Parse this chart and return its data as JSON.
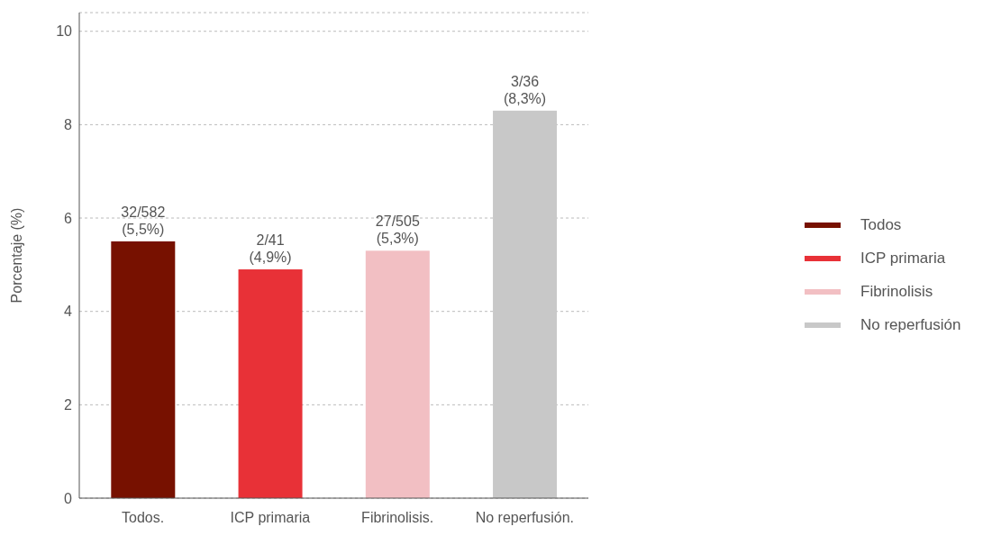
{
  "chart_data": {
    "type": "bar",
    "ylabel": "Porcentaje (%)",
    "categories": [
      "Todos.",
      "ICP primaria",
      "Fibrinolisis.",
      "No reperfusión."
    ],
    "stacked": true,
    "series": [
      {
        "name": "Todos",
        "color": "#771100",
        "values": [
          5.5,
          null,
          null,
          null
        ],
        "value_labels": [
          "32/582\n(5,5%)",
          null,
          null,
          null
        ]
      },
      {
        "name": "ICP primaria",
        "color": "#e83137",
        "values": [
          null,
          4.9,
          null,
          null
        ],
        "value_labels": [
          null,
          "2/41\n(4,9%)",
          null,
          null
        ]
      },
      {
        "name": "Fibrinolisis",
        "color": "#f2bfc3",
        "values": [
          null,
          null,
          5.3,
          null
        ],
        "value_labels": [
          null,
          null,
          "27/505\n(5,3%)",
          null
        ]
      },
      {
        "name": "No reperfusión",
        "color": "#c8c8c8",
        "values": [
          null,
          null,
          null,
          8.3
        ],
        "value_labels": [
          null,
          null,
          null,
          "3/36\n(8,3%)"
        ]
      }
    ],
    "ylim": [
      0,
      10.4
    ],
    "yticks": [
      0,
      2,
      4,
      6,
      8,
      10
    ],
    "grid": "y",
    "legend": "right"
  }
}
